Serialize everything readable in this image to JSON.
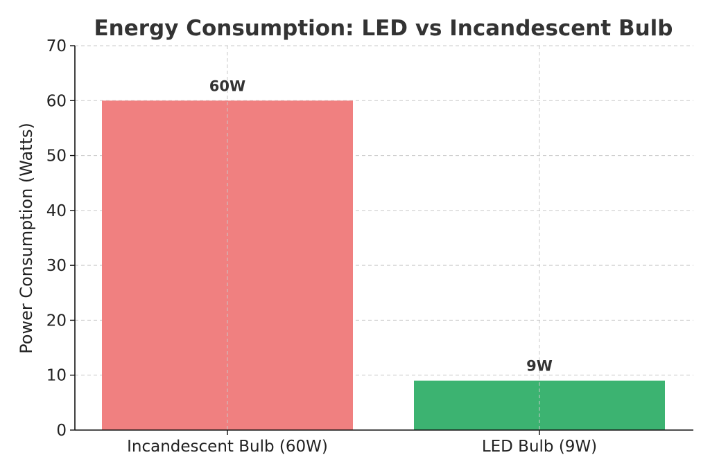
{
  "chart_data": {
    "type": "bar",
    "title": "Energy Consumption: LED vs Incandescent Bulb",
    "xlabel": "",
    "ylabel": "Power Consumption (Watts)",
    "ylim": [
      0,
      70
    ],
    "yticks": [
      0,
      10,
      20,
      30,
      40,
      50,
      60,
      70
    ],
    "grid": true,
    "categories": [
      "Incandescent Bulb (60W)",
      "LED Bulb (9W)"
    ],
    "values": [
      60,
      9
    ],
    "data_labels": [
      "60W",
      "9W"
    ],
    "colors": [
      "#f08080",
      "#3cb371"
    ]
  }
}
